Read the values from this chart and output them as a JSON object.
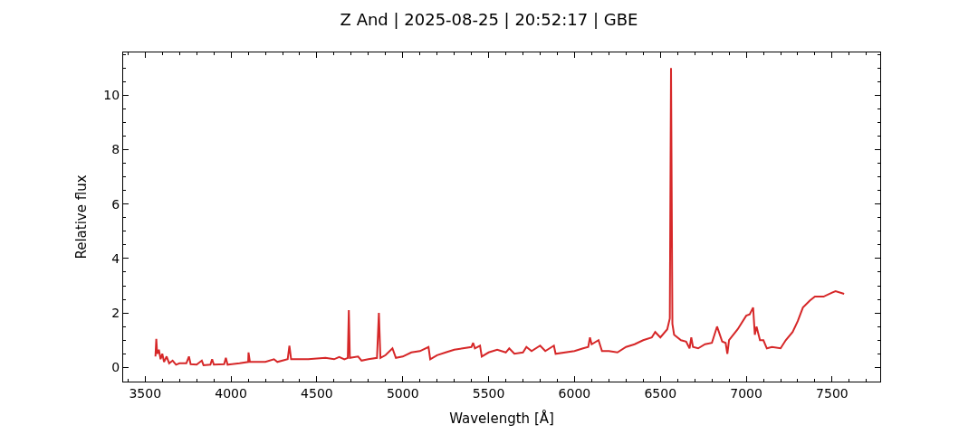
{
  "chart_data": {
    "type": "line",
    "title": "Z And | 2025-08-25 | 20:52:17 | GBE",
    "xlabel": "Wavelength [Å]",
    "ylabel": "Relative flux",
    "x": [
      3560,
      3565,
      3570,
      3580,
      3590,
      3600,
      3610,
      3625,
      3640,
      3660,
      3680,
      3700,
      3740,
      3755,
      3765,
      3800,
      3830,
      3840,
      3880,
      3890,
      3900,
      3960,
      3970,
      3980,
      4050,
      4100,
      4102,
      4110,
      4200,
      4250,
      4270,
      4330,
      4340,
      4350,
      4450,
      4550,
      4600,
      4630,
      4660,
      4680,
      4686,
      4692,
      4740,
      4760,
      4800,
      4850,
      4861,
      4870,
      4900,
      4940,
      4960,
      5000,
      5050,
      5100,
      5150,
      5160,
      5200,
      5250,
      5300,
      5350,
      5400,
      5410,
      5420,
      5450,
      5460,
      5500,
      5550,
      5600,
      5620,
      5650,
      5700,
      5720,
      5750,
      5800,
      5830,
      5880,
      5890,
      6000,
      6050,
      6080,
      6090,
      6100,
      6140,
      6160,
      6200,
      6250,
      6300,
      6350,
      6400,
      6450,
      6470,
      6500,
      6540,
      6555,
      6562,
      6570,
      6580,
      6620,
      6650,
      6670,
      6680,
      6690,
      6720,
      6760,
      6800,
      6830,
      6860,
      6880,
      6890,
      6900,
      6950,
      7000,
      7020,
      7040,
      7050,
      7060,
      7080,
      7100,
      7120,
      7150,
      7200,
      7230,
      7270,
      7300,
      7330,
      7370,
      7400,
      7450,
      7500,
      7520,
      7570
    ],
    "series": [
      {
        "color": "#d62728",
        "values": [
          0.4,
          1.05,
          0.5,
          0.65,
          0.3,
          0.5,
          0.2,
          0.4,
          0.15,
          0.25,
          0.1,
          0.15,
          0.15,
          0.4,
          0.12,
          0.1,
          0.25,
          0.08,
          0.1,
          0.3,
          0.1,
          0.12,
          0.35,
          0.1,
          0.15,
          0.2,
          0.55,
          0.2,
          0.2,
          0.3,
          0.2,
          0.3,
          0.8,
          0.3,
          0.3,
          0.35,
          0.3,
          0.38,
          0.3,
          0.35,
          2.1,
          0.35,
          0.4,
          0.25,
          0.3,
          0.35,
          2.0,
          0.35,
          0.45,
          0.7,
          0.35,
          0.4,
          0.55,
          0.6,
          0.75,
          0.3,
          0.45,
          0.55,
          0.65,
          0.7,
          0.75,
          0.9,
          0.7,
          0.8,
          0.4,
          0.55,
          0.65,
          0.55,
          0.7,
          0.5,
          0.55,
          0.75,
          0.6,
          0.8,
          0.6,
          0.8,
          0.5,
          0.6,
          0.7,
          0.75,
          1.1,
          0.85,
          1.0,
          0.6,
          0.6,
          0.55,
          0.75,
          0.85,
          1.0,
          1.1,
          1.3,
          1.1,
          1.4,
          1.8,
          11.0,
          1.6,
          1.2,
          1.0,
          0.95,
          0.7,
          1.1,
          0.75,
          0.7,
          0.85,
          0.9,
          1.5,
          0.95,
          0.9,
          0.5,
          1.0,
          1.4,
          1.9,
          1.95,
          2.2,
          1.2,
          1.5,
          1.0,
          1.0,
          0.7,
          0.75,
          0.7,
          1.0,
          1.3,
          1.7,
          2.2,
          2.45,
          2.6,
          2.6,
          2.75,
          2.8,
          2.7
        ]
      }
    ],
    "xlim": [
      3372,
      7780
    ],
    "ylim": [
      -0.52,
      11.57
    ],
    "xticks": [
      {
        "value": 3400,
        "label": null
      },
      3500,
      {
        "value": 3600,
        "label": null
      },
      {
        "value": 3700,
        "label": null
      },
      {
        "value": 3800,
        "label": null
      },
      {
        "value": 3900,
        "label": null
      },
      4000,
      {
        "value": 4100,
        "label": null
      },
      {
        "value": 4200,
        "label": null
      },
      {
        "value": 4300,
        "label": null
      },
      {
        "value": 4400,
        "label": null
      },
      4500,
      {
        "value": 4600,
        "label": null
      },
      {
        "value": 4700,
        "label": null
      },
      {
        "value": 4800,
        "label": null
      },
      {
        "value": 4900,
        "label": null
      },
      5000,
      {
        "value": 5100,
        "label": null
      },
      {
        "value": 5200,
        "label": null
      },
      {
        "value": 5300,
        "label": null
      },
      {
        "value": 5400,
        "label": null
      },
      5500,
      {
        "value": 5600,
        "label": null
      },
      {
        "value": 5700,
        "label": null
      },
      {
        "value": 5800,
        "label": null
      },
      {
        "value": 5900,
        "label": null
      },
      6000,
      {
        "value": 6100,
        "label": null
      },
      {
        "value": 6200,
        "label": null
      },
      {
        "value": 6300,
        "label": null
      },
      {
        "value": 6400,
        "label": null
      },
      6500,
      {
        "value": 6600,
        "label": null
      },
      {
        "value": 6700,
        "label": null
      },
      {
        "value": 6800,
        "label": null
      },
      {
        "value": 6900,
        "label": null
      },
      7000,
      {
        "value": 7100,
        "label": null
      },
      {
        "value": 7200,
        "label": null
      },
      {
        "value": 7300,
        "label": null
      },
      {
        "value": 7400,
        "label": null
      },
      7500,
      {
        "value": 7600,
        "label": null
      },
      {
        "value": 7700,
        "label": null
      }
    ],
    "yticks": [
      {
        "value": -0.5,
        "label": null
      },
      0,
      {
        "value": 0.5,
        "label": null
      },
      {
        "value": 1,
        "label": null
      },
      {
        "value": 1.5,
        "label": null
      },
      2,
      {
        "value": 2.5,
        "label": null
      },
      {
        "value": 3,
        "label": null
      },
      {
        "value": 3.5,
        "label": null
      },
      4,
      {
        "value": 4.5,
        "label": null
      },
      {
        "value": 5,
        "label": null
      },
      {
        "value": 5.5,
        "label": null
      },
      6,
      {
        "value": 6.5,
        "label": null
      },
      {
        "value": 7,
        "label": null
      },
      {
        "value": 7.5,
        "label": null
      },
      8,
      {
        "value": 8.5,
        "label": null
      },
      {
        "value": 9,
        "label": null
      },
      {
        "value": 9.5,
        "label": null
      },
      10,
      {
        "value": 10.5,
        "label": null
      },
      {
        "value": 11,
        "label": null
      },
      {
        "value": 11.5,
        "label": null
      }
    ],
    "marker": "none",
    "line_style": "solid"
  }
}
